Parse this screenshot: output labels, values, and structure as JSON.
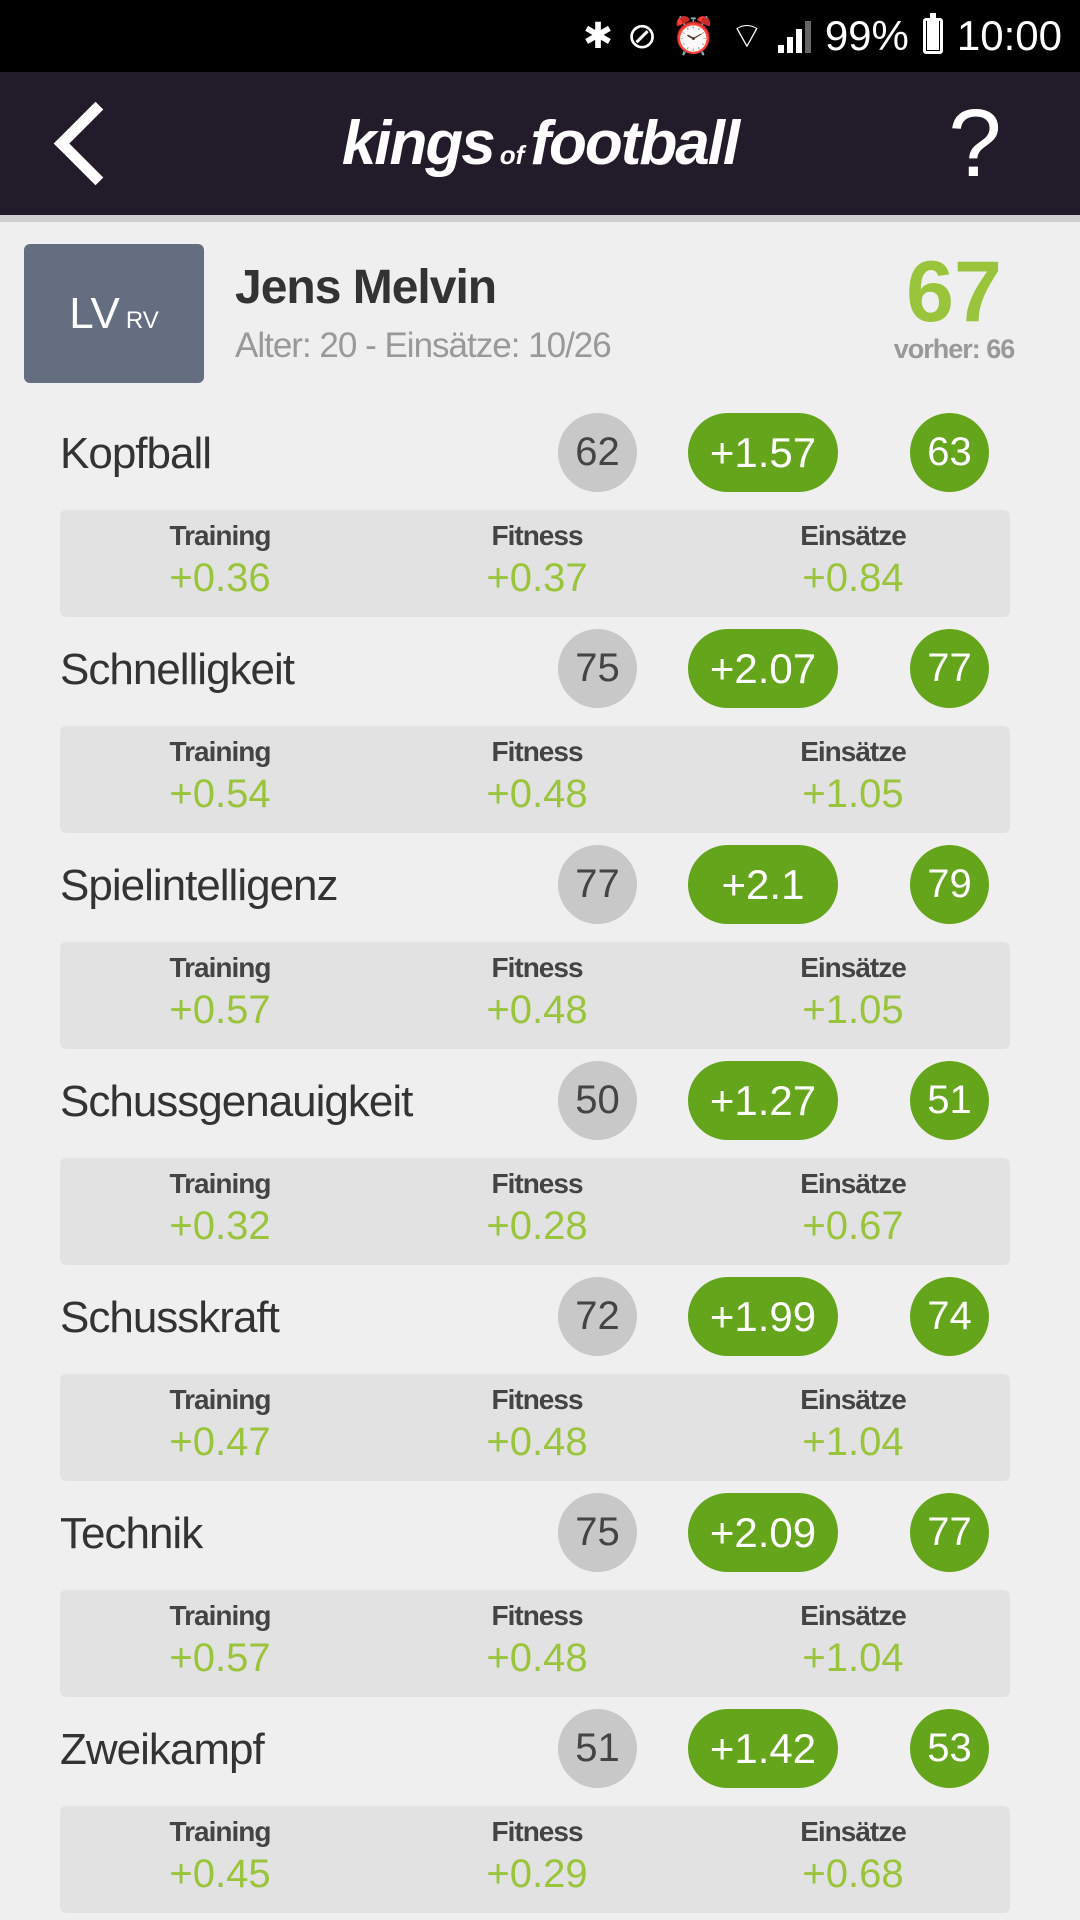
{
  "status": {
    "battery": "99%",
    "time": "10:00",
    "battery_level": 0.99
  },
  "header": {
    "logo_main": "kings",
    "logo_of": "of",
    "logo_end": "football",
    "help": "?"
  },
  "player": {
    "pos_main": "LV",
    "pos_alt": "RV",
    "name": "Jens Melvin",
    "meta": "Alter: 20 - Einsätze: 10/26",
    "rating": "67",
    "previous": "vorher: 66"
  },
  "labels": {
    "training": "Training",
    "fitness": "Fitness",
    "einsaetze": "Einsätze"
  },
  "attributes": [
    {
      "name": "Kopfball",
      "old": "62",
      "delta": "+1.57",
      "new": "63",
      "training": "+0.36",
      "fitness": "+0.37",
      "einsaetze": "+0.84"
    },
    {
      "name": "Schnelligkeit",
      "old": "75",
      "delta": "+2.07",
      "new": "77",
      "training": "+0.54",
      "fitness": "+0.48",
      "einsaetze": "+1.05"
    },
    {
      "name": "Spielintelligenz",
      "old": "77",
      "delta": "+2.1",
      "new": "79",
      "training": "+0.57",
      "fitness": "+0.48",
      "einsaetze": "+1.05"
    },
    {
      "name": "Schussgenauigkeit",
      "old": "50",
      "delta": "+1.27",
      "new": "51",
      "training": "+0.32",
      "fitness": "+0.28",
      "einsaetze": "+0.67"
    },
    {
      "name": "Schusskraft",
      "old": "72",
      "delta": "+1.99",
      "new": "74",
      "training": "+0.47",
      "fitness": "+0.48",
      "einsaetze": "+1.04"
    },
    {
      "name": "Technik",
      "old": "75",
      "delta": "+2.09",
      "new": "77",
      "training": "+0.57",
      "fitness": "+0.48",
      "einsaetze": "+1.04"
    },
    {
      "name": "Zweikampf",
      "old": "51",
      "delta": "+1.42",
      "new": "53",
      "training": "+0.45",
      "fitness": "+0.29",
      "einsaetze": "+0.68"
    }
  ]
}
